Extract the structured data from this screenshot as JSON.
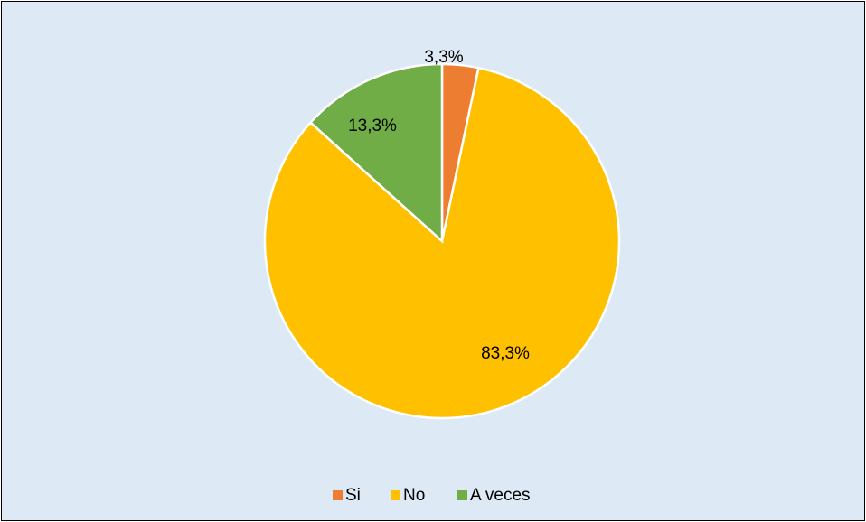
{
  "chart_data": {
    "type": "pie",
    "categories": [
      "Si",
      "No",
      "A veces"
    ],
    "values": [
      3.3,
      83.3,
      13.3
    ],
    "data_labels": [
      "3,3%",
      "83,3%",
      "13,3%"
    ],
    "colors": [
      "#ed7d31",
      "#ffc000",
      "#70ad47"
    ],
    "background": "#dde9f5",
    "legend": {
      "placement": "bottom",
      "entries": [
        "Si",
        "No",
        "A veces"
      ]
    },
    "title": ""
  }
}
